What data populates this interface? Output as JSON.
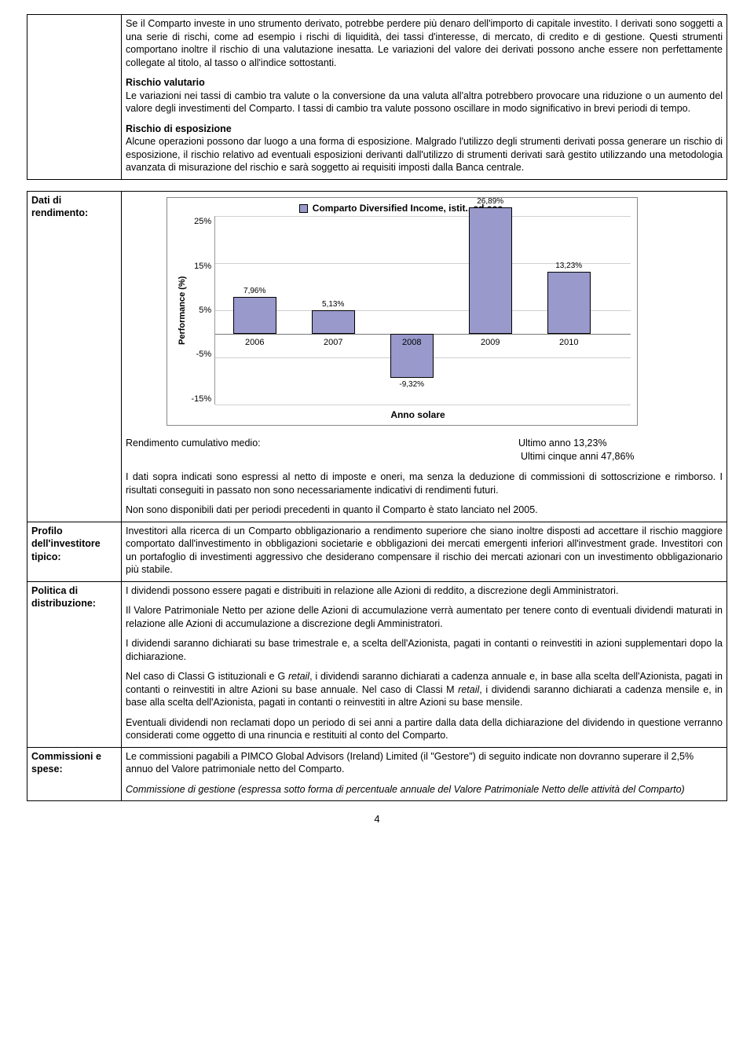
{
  "top_section": {
    "p1": "Se il Comparto investe in uno strumento derivato, potrebbe perdere più denaro dell'importo di capitale investito. I derivati sono soggetti a una serie di rischi, come ad esempio i rischi di liquidità, dei tassi d'interesse, di mercato, di credito e di gestione. Questi strumenti comportano inoltre il rischio di una valutazione inesatta. Le variazioni del valore dei derivati possono anche essere non perfettamente collegate al titolo, al tasso o all'indice sottostanti.",
    "h2": "Rischio valutario",
    "p2": "Le variazioni nei tassi di cambio tra valute o la conversione da una valuta all'altra potrebbero provocare una riduzione o un aumento del valore degli investimenti del Comparto. I tassi di cambio tra valute possono oscillare in modo significativo in brevi periodi di tempo.",
    "h3": "Rischio di esposizione",
    "p3": "Alcune operazioni possono dar luogo a una forma di esposizione. Malgrado l'utilizzo degli strumenti derivati possa generare un rischio di esposizione, il rischio relativo ad eventuali esposizioni derivanti dall'utilizzo di strumenti derivati sarà gestito utilizzando una metodologia avanzata di misurazione del rischio e sarà soggetto ai requisiti imposti dalla Banca centrale."
  },
  "row_rendimento": {
    "label": "Dati di rendimento:",
    "chart": {
      "legend": "Comparto Diversified Income, istit., ad acc.",
      "y_label": "Performance (%)",
      "x_label": "Anno solare",
      "y_ticks": [
        "25%",
        "15%",
        "5%",
        "-5%",
        "-15%"
      ],
      "categories": [
        "2006",
        "2007",
        "2008",
        "2009",
        "2010"
      ],
      "values": [
        7.96,
        5.13,
        -9.32,
        26.89,
        13.23
      ],
      "value_labels": [
        "7,96%",
        "5,13%",
        "-9,32%",
        "26,89%",
        "13,23%"
      ],
      "bar_color": "#9999cc",
      "grid_color": "#d0d0d0",
      "ymin": -15,
      "ymax": 25
    },
    "cum_label": "Rendimento cumulativo medio:",
    "cum_v1": "Ultimo anno 13,23%",
    "cum_v2": "Ultimi cinque anni 47,86%",
    "p_disclaimer": "I dati sopra indicati sono espressi al netto di imposte e oneri, ma senza la deduzione di commissioni di sottoscrizione e rimborso. I risultati conseguiti in passato non sono necessariamente indicativi di rendimenti futuri.",
    "p_nodata": "Non sono disponibili dati per periodi precedenti in quanto il Comparto è stato lanciato nel 2005."
  },
  "row_profilo": {
    "label": "Profilo dell'investitore tipico:",
    "text": "Investitori alla ricerca di un Comparto obbligazionario a rendimento superiore che siano inoltre disposti ad accettare il rischio maggiore comportato dall'investimento in obbligazioni societarie e obbligazioni dei mercati emergenti inferiori all'investment grade. Investitori con un portafoglio di investimenti aggressivo che desiderano compensare il rischio dei mercati azionari con un investimento obbligazionario più stabile."
  },
  "row_politica": {
    "label": "Politica di distribuzione:",
    "p1": "I dividendi possono essere pagati e distribuiti in relazione alle Azioni di reddito, a discrezione degli Amministratori.",
    "p2": "Il Valore Patrimoniale Netto per azione delle Azioni di accumulazione verrà aumentato per tenere conto di eventuali dividendi maturati in relazione alle Azioni di accumulazione a discrezione degli Amministratori.",
    "p3": "I dividendi saranno dichiarati su base trimestrale e, a scelta dell'Azionista, pagati in contanti o reinvestiti in azioni supplementari dopo la dichiarazione.",
    "p4a": "Nel caso di Classi G istituzionali e G ",
    "p4b": ", i dividendi saranno dichiarati a cadenza annuale e, in base alla scelta dell'Azionista, pagati in contanti o reinvestiti in altre Azioni su base annuale. Nel caso di Classi M ",
    "p4c": ", i dividendi saranno dichiarati a cadenza mensile e, in base alla scelta dell'Azionista, pagati in contanti o reinvestiti in altre Azioni su base mensile.",
    "retail": "retail",
    "p5": "Eventuali dividendi non reclamati dopo un periodo di sei anni a partire dalla data della dichiarazione del dividendo in questione verranno considerati come oggetto di una rinuncia e restituiti al conto del Comparto."
  },
  "row_commissioni": {
    "label": "Commissioni e spese:",
    "p1": "Le commissioni pagabili a PIMCO Global Advisors (Ireland) Limited (il \"Gestore\") di seguito indicate non dovranno superare il 2,5% annuo del Valore patrimoniale netto del Comparto.",
    "p2": "Commissione di gestione (espressa sotto forma di percentuale annuale del Valore Patrimoniale Netto delle attività del Comparto)"
  },
  "page_number": "4"
}
